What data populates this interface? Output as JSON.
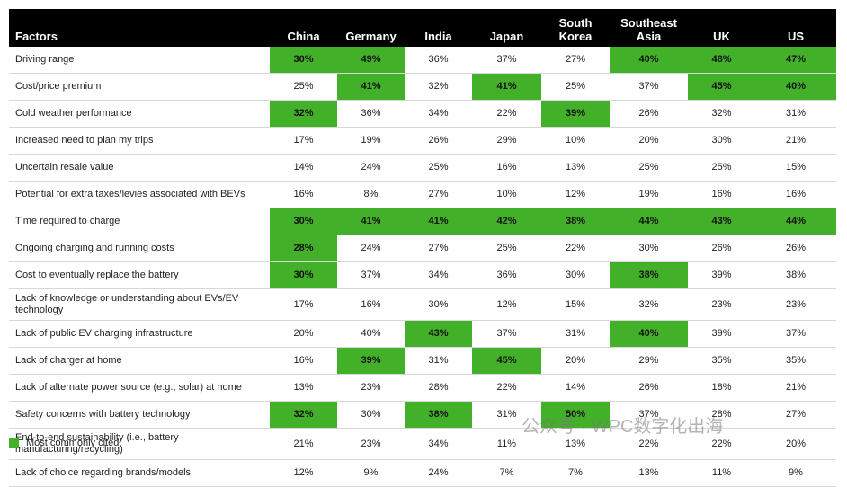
{
  "table": {
    "header": [
      "Factors",
      "China",
      "Germany",
      "India",
      "Japan",
      "South Korea",
      "Southeast Asia",
      "UK",
      "US"
    ],
    "rows": [
      {
        "factor": "Driving range",
        "values": [
          "30%",
          "49%",
          "36%",
          "37%",
          "27%",
          "40%",
          "48%",
          "47%"
        ],
        "highlight": [
          true,
          true,
          false,
          false,
          false,
          true,
          true,
          true
        ]
      },
      {
        "factor": "Cost/price premium",
        "values": [
          "25%",
          "41%",
          "32%",
          "41%",
          "25%",
          "37%",
          "45%",
          "40%"
        ],
        "highlight": [
          false,
          true,
          false,
          true,
          false,
          false,
          true,
          true
        ]
      },
      {
        "factor": "Cold weather performance",
        "values": [
          "32%",
          "36%",
          "34%",
          "22%",
          "39%",
          "26%",
          "32%",
          "31%"
        ],
        "highlight": [
          true,
          false,
          false,
          false,
          true,
          false,
          false,
          false
        ]
      },
      {
        "factor": "Increased need to plan my trips",
        "values": [
          "17%",
          "19%",
          "26%",
          "29%",
          "10%",
          "20%",
          "30%",
          "21%"
        ],
        "highlight": [
          false,
          false,
          false,
          false,
          false,
          false,
          false,
          false
        ]
      },
      {
        "factor": "Uncertain resale value",
        "values": [
          "14%",
          "24%",
          "25%",
          "16%",
          "13%",
          "25%",
          "25%",
          "15%"
        ],
        "highlight": [
          false,
          false,
          false,
          false,
          false,
          false,
          false,
          false
        ]
      },
      {
        "factor": "Potential for extra taxes/levies associated with BEVs",
        "values": [
          "16%",
          "8%",
          "27%",
          "10%",
          "12%",
          "19%",
          "16%",
          "16%"
        ],
        "highlight": [
          false,
          false,
          false,
          false,
          false,
          false,
          false,
          false
        ]
      },
      {
        "factor": "Time required to charge",
        "values": [
          "30%",
          "41%",
          "41%",
          "42%",
          "38%",
          "44%",
          "43%",
          "44%"
        ],
        "highlight": [
          true,
          true,
          true,
          true,
          true,
          true,
          true,
          true
        ]
      },
      {
        "factor": "Ongoing charging and running costs",
        "values": [
          "28%",
          "24%",
          "27%",
          "25%",
          "22%",
          "30%",
          "26%",
          "26%"
        ],
        "highlight": [
          true,
          false,
          false,
          false,
          false,
          false,
          false,
          false
        ]
      },
      {
        "factor": "Cost to eventually replace the battery",
        "values": [
          "30%",
          "37%",
          "34%",
          "36%",
          "30%",
          "38%",
          "39%",
          "38%"
        ],
        "highlight": [
          true,
          false,
          false,
          false,
          false,
          true,
          false,
          false
        ]
      },
      {
        "factor": "Lack of knowledge or understanding about EVs/EV technology",
        "values": [
          "17%",
          "16%",
          "30%",
          "12%",
          "15%",
          "32%",
          "23%",
          "23%"
        ],
        "highlight": [
          false,
          false,
          false,
          false,
          false,
          false,
          false,
          false
        ]
      },
      {
        "factor": "Lack of public EV charging infrastructure",
        "values": [
          "20%",
          "40%",
          "43%",
          "37%",
          "31%",
          "40%",
          "39%",
          "37%"
        ],
        "highlight": [
          false,
          false,
          true,
          false,
          false,
          true,
          false,
          false
        ]
      },
      {
        "factor": "Lack of charger at home",
        "values": [
          "16%",
          "39%",
          "31%",
          "45%",
          "20%",
          "29%",
          "35%",
          "35%"
        ],
        "highlight": [
          false,
          true,
          false,
          true,
          false,
          false,
          false,
          false
        ]
      },
      {
        "factor": "Lack of alternate power source (e.g., solar) at home",
        "values": [
          "13%",
          "23%",
          "28%",
          "22%",
          "14%",
          "26%",
          "18%",
          "21%"
        ],
        "highlight": [
          false,
          false,
          false,
          false,
          false,
          false,
          false,
          false
        ]
      },
      {
        "factor": "Safety concerns with battery technology",
        "values": [
          "32%",
          "30%",
          "38%",
          "31%",
          "50%",
          "37%",
          "28%",
          "27%"
        ],
        "highlight": [
          true,
          false,
          true,
          false,
          true,
          false,
          false,
          false
        ]
      },
      {
        "factor": "End-to-end sustainability (i.e., battery manufacturing/recycling)",
        "values": [
          "21%",
          "23%",
          "34%",
          "11%",
          "13%",
          "22%",
          "22%",
          "20%"
        ],
        "highlight": [
          false,
          false,
          false,
          false,
          false,
          false,
          false,
          false
        ]
      },
      {
        "factor": "Lack of choice regarding brands/models",
        "values": [
          "12%",
          "9%",
          "24%",
          "7%",
          "7%",
          "13%",
          "11%",
          "9%"
        ],
        "highlight": [
          false,
          false,
          false,
          false,
          false,
          false,
          false,
          false
        ]
      }
    ],
    "highlight_color": "#43b02a"
  },
  "legend": {
    "label": "Most commonly cited"
  },
  "watermark": "公众号 · WPC数字化出海"
}
